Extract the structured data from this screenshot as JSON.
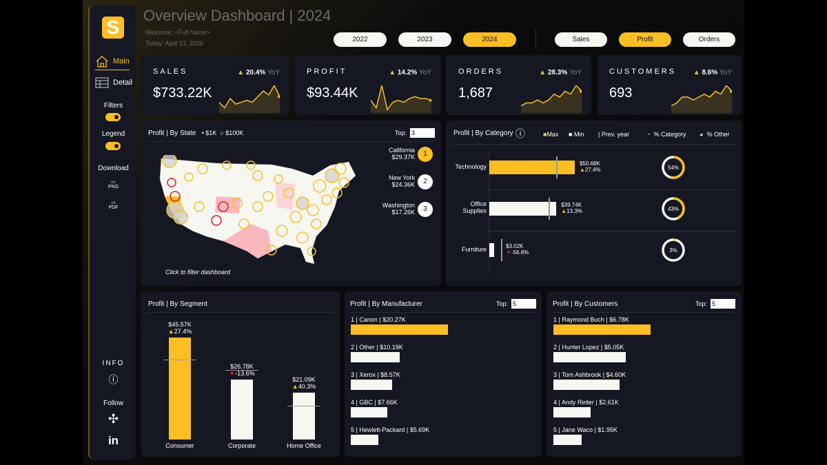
{
  "header": {
    "title": "Overview Dashboard | 2024",
    "welcome": "Welcome: <Full Name>",
    "today": "Today: April 13, 2026"
  },
  "years": [
    {
      "label": "2022",
      "active": false
    },
    {
      "label": "2023",
      "active": false
    },
    {
      "label": "2024",
      "active": true
    }
  ],
  "measures": [
    {
      "label": "Sales",
      "active": false
    },
    {
      "label": "Profit",
      "active": true
    },
    {
      "label": "Orders",
      "active": false
    }
  ],
  "sidebar": {
    "logo": "S",
    "main": "Main",
    "detail": "Detail",
    "filters": "Filters",
    "legend": "Legend",
    "download": "Download",
    "png": "PNG",
    "pdf": "PDF",
    "info": "INFO",
    "follow": "Follow",
    "linkedin": "in"
  },
  "kpis": [
    {
      "label": "SALES",
      "value": "$733.22K",
      "yoy": "20.4%",
      "yoy_label": "YoY",
      "spark": [
        5,
        2,
        7,
        4,
        5,
        6,
        5,
        8,
        11,
        9,
        14,
        8
      ]
    },
    {
      "label": "PROFIT",
      "value": "$93.44K",
      "yoy": "14.2%",
      "yoy_label": "YoY",
      "spark": [
        6,
        2,
        14,
        1,
        5,
        6,
        5,
        7,
        8,
        7,
        7,
        6
      ]
    },
    {
      "label": "ORDERS",
      "value": "1,687",
      "yoy": "28.3%",
      "yoy_label": "YoY",
      "spark": [
        2,
        3,
        3,
        4,
        3,
        4,
        6,
        5,
        7,
        6,
        9,
        7
      ]
    },
    {
      "label": "CUSTOMERS",
      "value": "693",
      "yoy": "8.6%",
      "yoy_label": "YoY",
      "spark": [
        2,
        3,
        5,
        5,
        4,
        5,
        6,
        5,
        7,
        6,
        9,
        7
      ]
    }
  ],
  "colors": {
    "accent": "#fbbf24",
    "panel": "#151822",
    "negative": "#e11d2a",
    "bar_light": "#f7f7f2"
  },
  "map": {
    "title": "Profit | By State",
    "legend_small": "$1K",
    "legend_large": "$100K",
    "top_label": "Top:",
    "top_value": "3",
    "footer": "Click to filter dashboard",
    "ranking": [
      {
        "state": "California",
        "value": "$29.37K",
        "rank": "1"
      },
      {
        "state": "New York",
        "value": "$24.36K",
        "rank": "2"
      },
      {
        "state": "Washington",
        "value": "$17.26K",
        "rank": "3"
      }
    ]
  },
  "category": {
    "title": "Profit | By Category",
    "legend": {
      "max": "Max",
      "min": "Min",
      "prev": "| Prev. year",
      "pct_category": "% Category",
      "pct_other": "% Other"
    },
    "items": [
      {
        "name": "Technology",
        "value": "$50.68K",
        "change": "27.4%",
        "dir": "up",
        "share": 54,
        "profit": 50.68,
        "prev": 39.8
      },
      {
        "name": "Office Supplies",
        "value": "$39.74K",
        "change": "13.3%",
        "dir": "up",
        "share": 43,
        "profit": 39.74,
        "prev": 35.1
      },
      {
        "name": "Furniture",
        "value": "$3.02K",
        "change": "-56.6%",
        "dir": "down",
        "share": 3,
        "profit": 3.02,
        "prev": 6.96
      }
    ]
  },
  "segment": {
    "title": "Profit | By Segment",
    "items": [
      {
        "name": "Consumer",
        "value": "$45.57K",
        "change": "27.4%",
        "dir": "up",
        "profit": 45.57,
        "prev": 35.8
      },
      {
        "name": "Corporate",
        "value": "$26.78K",
        "change": "-13.6%",
        "dir": "down",
        "profit": 26.78,
        "prev": 31.0
      },
      {
        "name": "Home Office",
        "value": "$21.09K",
        "change": "40.3%",
        "dir": "up",
        "profit": 21.09,
        "prev": 15.0
      }
    ]
  },
  "manufacturer": {
    "title": "Profit | By Manufacturer",
    "top_label": "Top:",
    "top_value": "5",
    "items": [
      {
        "label": "1 | Canon | $20.27K",
        "v": 20.27
      },
      {
        "label": "2 | Other | $10.19K",
        "v": 10.19
      },
      {
        "label": "3 | Xerox | $8.57K",
        "v": 8.57
      },
      {
        "label": "4 | GBC | $7.66K",
        "v": 7.66
      },
      {
        "label": "5 | Hewlett-Packard | $5.69K",
        "v": 5.69
      }
    ]
  },
  "customers": {
    "title": "Profit | By Customers",
    "top_label": "Top:",
    "top_value": "5",
    "items": [
      {
        "label": "1 | Raymond Buch | $6.78K",
        "v": 6.78
      },
      {
        "label": "2 | Hunter Lopez | $5.05K",
        "v": 5.05
      },
      {
        "label": "3 | Tom Ashbrook | $4.60K",
        "v": 4.6
      },
      {
        "label": "4 | Andy Reiter | $2.61K",
        "v": 2.61
      },
      {
        "label": "5 | Jane Waco | $1.95K",
        "v": 1.95
      }
    ]
  }
}
